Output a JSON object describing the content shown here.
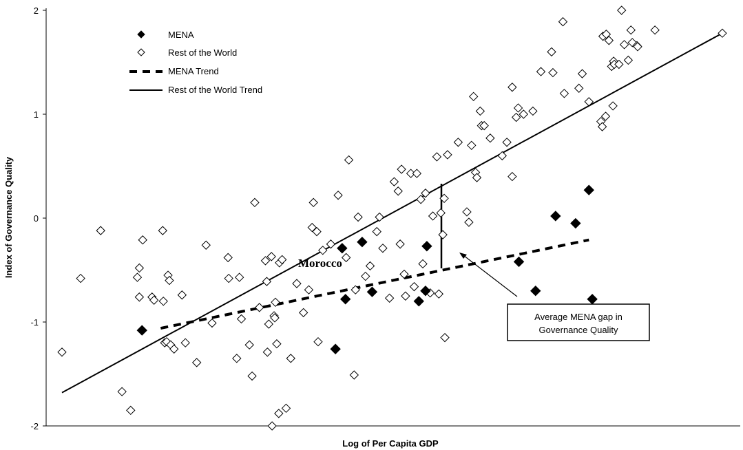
{
  "chart_data": {
    "type": "scatter",
    "xlabel": "Log of Per Capita GDP",
    "ylabel": "Index of Governance Quality",
    "ylim": [
      -2,
      2
    ],
    "yticks": [
      "-2",
      "-1",
      "0",
      "1",
      "2"
    ],
    "xlim": [
      0,
      100
    ],
    "grid": false,
    "legend_position": "top-left",
    "legend": [
      {
        "label": "MENA",
        "marker": "filled-diamond"
      },
      {
        "label": "Rest of the World",
        "marker": "open-diamond"
      },
      {
        "label": "MENA Trend",
        "marker": "dashed-line"
      },
      {
        "label": "Rest of the World Trend",
        "marker": "solid-line"
      }
    ],
    "series": [
      {
        "name": "MENA",
        "marker": "filled-diamond",
        "points": [
          [
            12,
            -1.08
          ],
          [
            41,
            -1.26
          ],
          [
            42,
            -0.29
          ],
          [
            42.5,
            -0.78
          ],
          [
            45,
            -0.23
          ],
          [
            46.5,
            -0.71
          ],
          [
            53.5,
            -0.8
          ],
          [
            54.5,
            -0.7
          ],
          [
            54.7,
            -0.27
          ],
          [
            68.5,
            -0.42
          ],
          [
            71,
            -0.7
          ],
          [
            74,
            0.02
          ],
          [
            77,
            -0.05
          ],
          [
            79,
            0.27
          ],
          [
            79.5,
            -0.78
          ]
        ]
      },
      {
        "name": "Rest of the World",
        "marker": "open-diamond",
        "points": [
          [
            0,
            -1.29
          ],
          [
            2.8,
            -0.58
          ],
          [
            5.8,
            -0.12
          ],
          [
            9,
            -1.67
          ],
          [
            10.3,
            -1.85
          ],
          [
            11.3,
            -0.57
          ],
          [
            11.6,
            -0.48
          ],
          [
            11.6,
            -0.76
          ],
          [
            12.1,
            -0.21
          ],
          [
            13.5,
            -0.76
          ],
          [
            13.8,
            -0.79
          ],
          [
            15.1,
            -0.12
          ],
          [
            15.2,
            -0.8
          ],
          [
            15.4,
            -1.2
          ],
          [
            15.7,
            -1.19
          ],
          [
            15.9,
            -0.55
          ],
          [
            16.1,
            -0.6
          ],
          [
            16.3,
            -1.22
          ],
          [
            16.8,
            -1.26
          ],
          [
            18,
            -0.74
          ],
          [
            18.5,
            -1.2
          ],
          [
            20.2,
            -1.39
          ],
          [
            21.6,
            -0.26
          ],
          [
            22.5,
            -1.01
          ],
          [
            24.9,
            -0.38
          ],
          [
            25,
            -0.58
          ],
          [
            26.2,
            -1.35
          ],
          [
            26.6,
            -0.57
          ],
          [
            26.9,
            -0.97
          ],
          [
            28.1,
            -1.22
          ],
          [
            28.5,
            -1.52
          ],
          [
            28.9,
            0.15
          ],
          [
            29.6,
            -0.86
          ],
          [
            30.5,
            -0.41
          ],
          [
            30.7,
            -0.61
          ],
          [
            30.8,
            -1.29
          ],
          [
            31,
            -1.02
          ],
          [
            31.4,
            -0.37
          ],
          [
            31.5,
            -2.0
          ],
          [
            31.8,
            -0.94
          ],
          [
            31.9,
            -0.96
          ],
          [
            32,
            -0.81
          ],
          [
            32.2,
            -1.21
          ],
          [
            32.5,
            -1.88
          ],
          [
            32.6,
            -0.43
          ],
          [
            33,
            -0.4
          ],
          [
            33.6,
            -1.83
          ],
          [
            34.3,
            -1.35
          ],
          [
            35.2,
            -0.63
          ],
          [
            36.2,
            -0.91
          ],
          [
            37,
            -0.69
          ],
          [
            37.5,
            -0.09
          ],
          [
            37.7,
            0.15
          ],
          [
            38.2,
            -0.13
          ],
          [
            38.4,
            -1.19
          ],
          [
            39.1,
            -0.31
          ],
          [
            40.3,
            -0.25
          ],
          [
            41.4,
            0.22
          ],
          [
            42.6,
            -0.38
          ],
          [
            43,
            0.56
          ],
          [
            43.8,
            -1.51
          ],
          [
            44,
            -0.69
          ],
          [
            44.4,
            0.01
          ],
          [
            45.5,
            -0.56
          ],
          [
            46.2,
            -0.46
          ],
          [
            47.2,
            -0.13
          ],
          [
            47.6,
            0.01
          ],
          [
            48.1,
            -0.29
          ],
          [
            49.1,
            -0.77
          ],
          [
            49.8,
            0.35
          ],
          [
            50.4,
            0.26
          ],
          [
            50.7,
            -0.25
          ],
          [
            50.9,
            0.47
          ],
          [
            51.3,
            -0.54
          ],
          [
            51.5,
            -0.75
          ],
          [
            52.3,
            0.43
          ],
          [
            52.8,
            -0.66
          ],
          [
            53.2,
            0.43
          ],
          [
            53.8,
            0.18
          ],
          [
            54.1,
            -0.44
          ],
          [
            54.5,
            0.24
          ],
          [
            55.2,
            -0.72
          ],
          [
            55.6,
            0.02
          ],
          [
            56.2,
            0.59
          ],
          [
            56.5,
            -0.73
          ],
          [
            56.8,
            0.05
          ],
          [
            57.1,
            -0.16
          ],
          [
            57.3,
            0.19
          ],
          [
            57.4,
            -1.15
          ],
          [
            57.8,
            0.61
          ],
          [
            59.4,
            0.73
          ],
          [
            60.7,
            0.06
          ],
          [
            61,
            -0.04
          ],
          [
            61.4,
            0.7
          ],
          [
            61.7,
            1.17
          ],
          [
            62,
            0.44
          ],
          [
            62.2,
            0.39
          ],
          [
            62.7,
            1.03
          ],
          [
            62.9,
            0.89
          ],
          [
            63.3,
            0.89
          ],
          [
            64.2,
            0.77
          ],
          [
            66,
            0.6
          ],
          [
            66.7,
            0.73
          ],
          [
            67.5,
            1.26
          ],
          [
            67.5,
            0.4
          ],
          [
            68.1,
            0.97
          ],
          [
            68.4,
            1.06
          ],
          [
            69.2,
            1.0
          ],
          [
            70.6,
            1.03
          ],
          [
            71.8,
            1.41
          ],
          [
            73.4,
            1.6
          ],
          [
            73.6,
            1.4
          ],
          [
            75.1,
            1.89
          ],
          [
            75.3,
            1.2
          ],
          [
            77.5,
            1.25
          ],
          [
            78,
            1.39
          ],
          [
            79,
            1.12
          ],
          [
            80.8,
            0.93
          ],
          [
            81,
            0.88
          ],
          [
            81.1,
            1.75
          ],
          [
            81.5,
            0.98
          ],
          [
            81.6,
            1.77
          ],
          [
            82,
            1.71
          ],
          [
            82.4,
            1.46
          ],
          [
            82.6,
            1.08
          ],
          [
            82.7,
            1.51
          ],
          [
            82.8,
            1.48
          ],
          [
            83.5,
            1.48
          ],
          [
            83.9,
            2.0
          ],
          [
            84.3,
            1.67
          ],
          [
            84.9,
            1.52
          ],
          [
            85.3,
            1.81
          ],
          [
            85.5,
            1.69
          ],
          [
            86.2,
            1.66
          ],
          [
            86.3,
            1.65
          ],
          [
            88.9,
            1.81
          ],
          [
            99,
            1.78
          ]
        ]
      }
    ],
    "trends": [
      {
        "name": "MENA Trend",
        "style": "dashed",
        "from": [
          14.8,
          -1.06
        ],
        "to": [
          79,
          -0.21
        ]
      },
      {
        "name": "Rest of the World Trend",
        "style": "solid",
        "from": [
          0,
          -1.68
        ],
        "to": [
          99,
          1.78
        ]
      }
    ],
    "annotations": {
      "point_label": "Morocco",
      "gap_box_line1": "Average MENA gap in",
      "gap_box_line2": "Governance Quality"
    }
  }
}
